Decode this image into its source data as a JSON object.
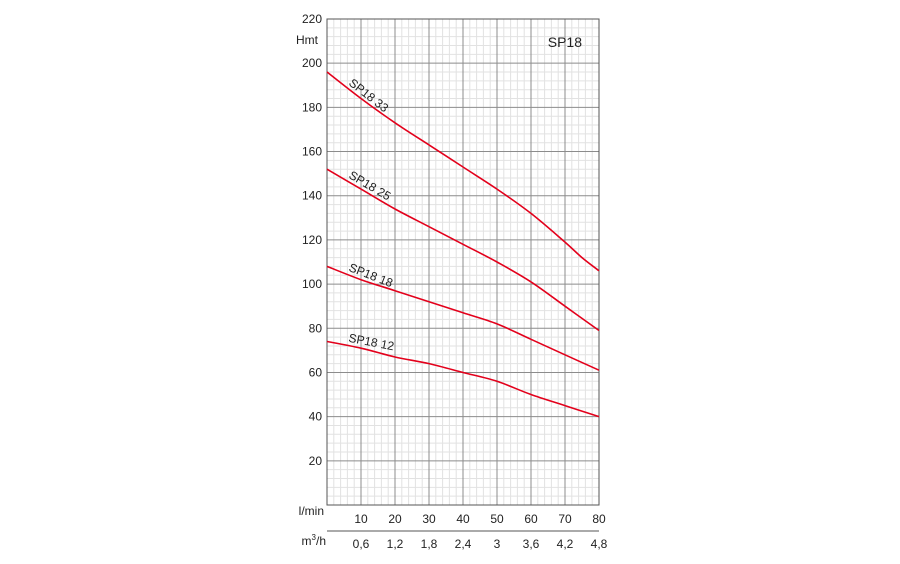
{
  "chart_data": {
    "type": "line",
    "title": "SP18",
    "ylabel": "Hmt",
    "xlabel": "l/min",
    "x2label": "m³/h",
    "x2label_base": "m",
    "x2label_sup": "3",
    "x2label_tail": "/h",
    "xlim": [
      0,
      80
    ],
    "ylim": [
      0,
      220
    ],
    "y_ticks": [
      20,
      40,
      60,
      80,
      100,
      120,
      140,
      160,
      180,
      200,
      220
    ],
    "x_ticks": [
      10,
      20,
      30,
      40,
      50,
      60,
      70,
      80
    ],
    "x2_ticks": [
      {
        "x": 10,
        "label": "0,6"
      },
      {
        "x": 20,
        "label": "1,2"
      },
      {
        "x": 30,
        "label": "1,8"
      },
      {
        "x": 40,
        "label": "2,4"
      },
      {
        "x": 50,
        "label": "3"
      },
      {
        "x": 60,
        "label": "3,6"
      },
      {
        "x": 70,
        "label": "4,2"
      },
      {
        "x": 80,
        "label": "4,8"
      }
    ],
    "grid": true,
    "line_color": "#e3001b",
    "series": [
      {
        "name": "SP18 33",
        "x": [
          0,
          10,
          20,
          30,
          40,
          50,
          60,
          70,
          75,
          80
        ],
        "y": [
          196,
          184,
          173,
          163,
          153,
          143,
          132,
          119,
          112,
          106
        ]
      },
      {
        "name": "SP18 25",
        "x": [
          0,
          10,
          20,
          30,
          40,
          50,
          60,
          70,
          80
        ],
        "y": [
          152,
          143,
          134,
          126,
          118,
          110,
          101,
          90,
          79
        ]
      },
      {
        "name": "SP18 18",
        "x": [
          0,
          10,
          20,
          30,
          40,
          50,
          60,
          70,
          80
        ],
        "y": [
          108,
          102,
          97,
          92,
          87,
          82,
          75,
          68,
          61
        ]
      },
      {
        "name": "SP18 12",
        "x": [
          0,
          10,
          20,
          30,
          40,
          50,
          60,
          70,
          80
        ],
        "y": [
          74,
          71,
          67,
          64,
          60,
          56,
          50,
          45,
          40
        ]
      }
    ]
  }
}
